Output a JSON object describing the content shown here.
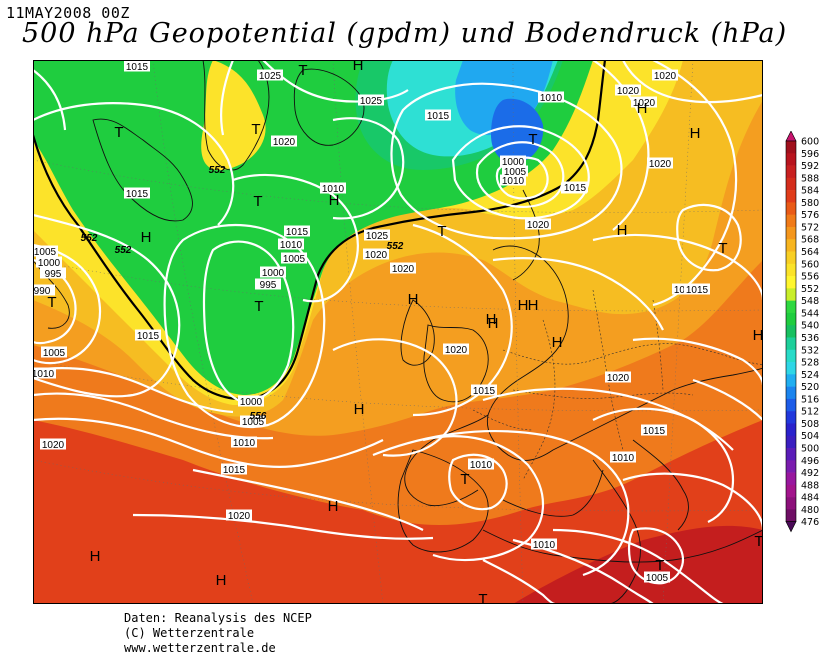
{
  "header": {
    "date": "11MAY2008 00Z",
    "title": "500 hPa Geopotential (gpdm) und Bodendruck (hPa)"
  },
  "credits": {
    "line1": "Daten: Reanalysis des NCEP",
    "line2": "(C) Wetterzentrale",
    "line3": "www.wetterzentrale.de"
  },
  "legend": {
    "levels": [
      "600",
      "596",
      "592",
      "588",
      "584",
      "580",
      "576",
      "572",
      "568",
      "564",
      "560",
      "556",
      "552",
      "548",
      "544",
      "540",
      "536",
      "532",
      "528",
      "524",
      "520",
      "516",
      "512",
      "508",
      "504",
      "500",
      "496",
      "492",
      "488",
      "484",
      "480",
      "476"
    ],
    "colors": [
      "#a0101c",
      "#b8141e",
      "#c82020",
      "#d42d1c",
      "#e03c1a",
      "#e95a16",
      "#f07a18",
      "#f4961c",
      "#f7b520",
      "#f8cf24",
      "#fbe329",
      "#fff62e",
      "#c8ee2a",
      "#2ed840",
      "#1fcd3f",
      "#18c060",
      "#1dcf9a",
      "#28dbc8",
      "#2ed6e6",
      "#20aef0",
      "#1b84ee",
      "#1d5ce8",
      "#2138dc",
      "#2a22cc",
      "#3a1ec0",
      "#5a1cb8",
      "#7a1cae",
      "#98179e",
      "#a2148c",
      "#8c107a",
      "#6e0e64"
    ],
    "top_color": "#c8146e",
    "bottom_color": "#4a0a58"
  },
  "map": {
    "colors": {
      "deep_red": "#c41e1e",
      "red": "#e1401a",
      "orange": "#ef7a1c",
      "light_orange": "#f49e20",
      "amber": "#f6bd22",
      "yellow": "#fce32a",
      "green": "#1fcd3f",
      "light_green": "#18c868",
      "cyan": "#2ee0d4",
      "blue": "#20a8f0",
      "deep_blue": "#1b6ce8"
    },
    "pressure_labels": [
      {
        "text": "1015"
      },
      {
        "text": "1025"
      },
      {
        "text": "1010"
      },
      {
        "text": "1020"
      },
      {
        "text": "1025"
      },
      {
        "text": "1015"
      },
      {
        "text": "1020"
      },
      {
        "text": "1015"
      },
      {
        "text": "1010"
      },
      {
        "text": "1000"
      },
      {
        "text": "1005"
      },
      {
        "text": "1010"
      },
      {
        "text": "1015"
      },
      {
        "text": "1020"
      },
      {
        "text": "1015"
      },
      {
        "text": "1010"
      },
      {
        "text": "1005"
      },
      {
        "text": "1000"
      },
      {
        "text": "995"
      },
      {
        "text": "1025"
      },
      {
        "text": "1020"
      },
      {
        "text": "1020"
      },
      {
        "text": "1020"
      },
      {
        "text": "1005"
      },
      {
        "text": "1000"
      },
      {
        "text": "995"
      },
      {
        "text": "990"
      },
      {
        "text": "1015"
      },
      {
        "text": "1005"
      },
      {
        "text": "1010"
      },
      {
        "text": "1020"
      },
      {
        "text": "1015"
      },
      {
        "text": "1020"
      },
      {
        "text": "1000"
      },
      {
        "text": "1005"
      },
      {
        "text": "1010"
      },
      {
        "text": "1015"
      },
      {
        "text": "1020"
      },
      {
        "text": "1015"
      },
      {
        "text": "1020"
      },
      {
        "text": "1015"
      },
      {
        "text": "1010"
      },
      {
        "text": "1010"
      },
      {
        "text": "1010"
      },
      {
        "text": "1005"
      },
      {
        "text": "1015"
      },
      {
        "text": "1020"
      },
      {
        "text": "1020"
      },
      {
        "text": "1015"
      }
    ],
    "geopotential_labels": [
      {
        "text": "552"
      },
      {
        "text": "552"
      },
      {
        "text": "552"
      },
      {
        "text": "552"
      },
      {
        "text": "556"
      }
    ],
    "centers": [
      {
        "text": "H"
      },
      {
        "text": "T"
      },
      {
        "text": "T"
      },
      {
        "text": "T"
      },
      {
        "text": "H"
      },
      {
        "text": "T"
      },
      {
        "text": "H"
      },
      {
        "text": "T"
      },
      {
        "text": "T"
      },
      {
        "text": "H"
      },
      {
        "text": "H"
      },
      {
        "text": "H"
      },
      {
        "text": "H"
      },
      {
        "text": "H"
      },
      {
        "text": "T"
      },
      {
        "text": "H"
      },
      {
        "text": "H"
      },
      {
        "text": "H"
      },
      {
        "text": "H"
      },
      {
        "text": "T"
      },
      {
        "text": "T"
      },
      {
        "text": "H"
      },
      {
        "text": "H"
      },
      {
        "text": "T"
      },
      {
        "text": "T"
      },
      {
        "text": "H"
      },
      {
        "text": "H"
      },
      {
        "text": "H"
      },
      {
        "text": "T"
      },
      {
        "text": "T"
      }
    ]
  }
}
